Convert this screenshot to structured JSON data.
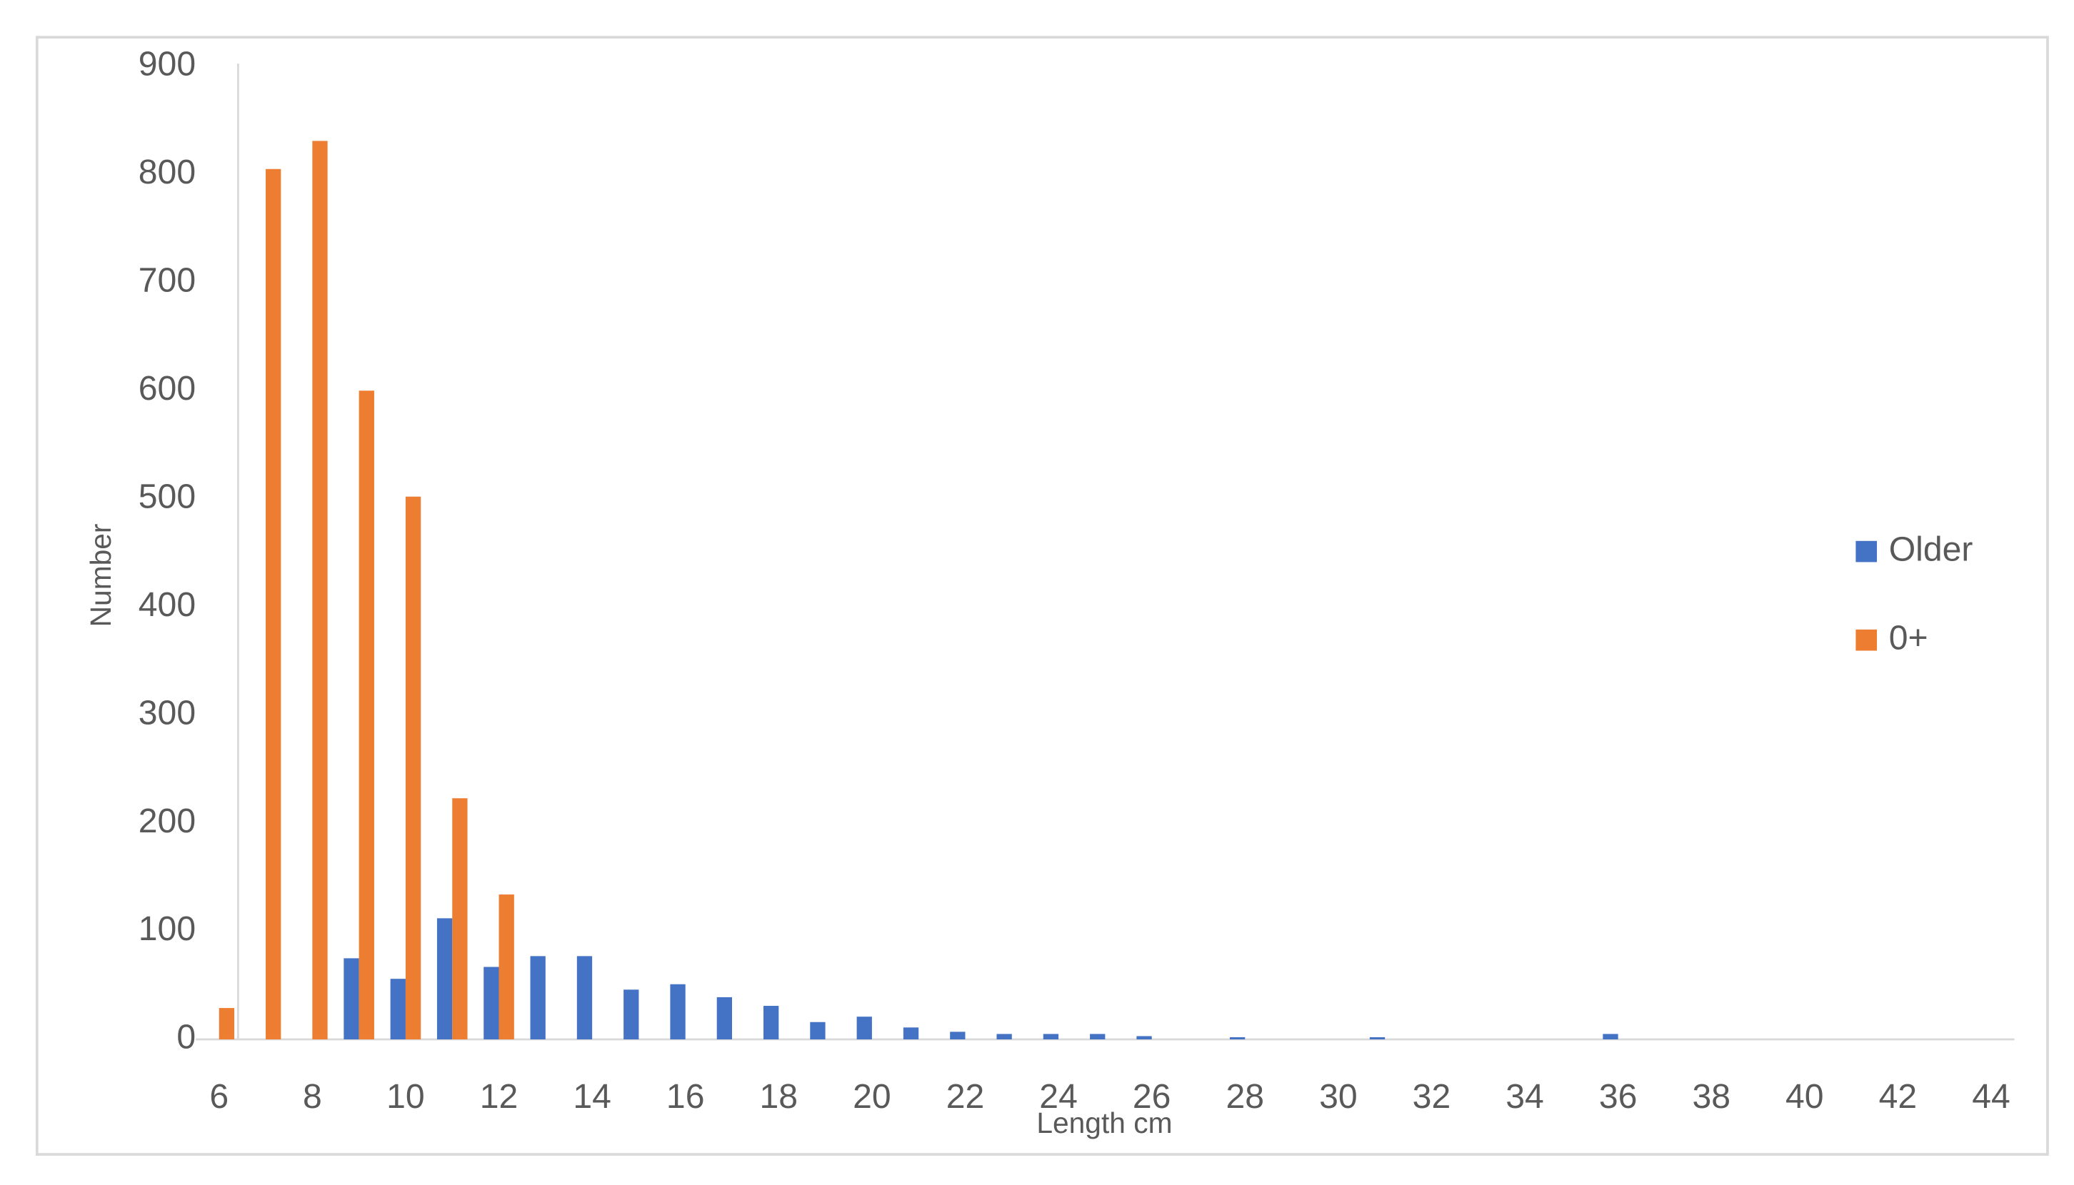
{
  "chart_data": {
    "type": "bar",
    "x_label": "Length cm",
    "y_label": "Number",
    "categories": [
      "6",
      null,
      "8",
      null,
      "10",
      null,
      "12",
      null,
      "14",
      null,
      "16",
      null,
      "18",
      null,
      "20",
      null,
      "22",
      null,
      "24",
      null,
      "26",
      null,
      "28",
      null,
      "30",
      null,
      "32",
      null,
      "34",
      null,
      "36",
      null,
      "38",
      null,
      "40",
      null,
      "42",
      null,
      "44"
    ],
    "series": [
      {
        "name": "Older",
        "color": "#4472c4",
        "values": [
          0,
          0,
          0,
          75,
          56,
          112,
          67,
          77,
          77,
          46,
          51,
          39,
          31,
          16,
          21,
          11,
          7,
          5,
          5,
          5,
          3,
          0,
          2,
          0,
          0,
          2,
          0,
          0,
          0,
          0,
          5,
          0,
          0,
          0,
          0,
          0,
          0,
          0,
          0
        ]
      },
      {
        "name": "0+",
        "color": "#ed7d31",
        "values": [
          29,
          805,
          831,
          600,
          502,
          223,
          134,
          0,
          0,
          0,
          0,
          0,
          0,
          0,
          0,
          0,
          0,
          0,
          0,
          0,
          0,
          0,
          0,
          0,
          0,
          0,
          0,
          0,
          0,
          0,
          0,
          0,
          0,
          0,
          0,
          0,
          0,
          0,
          0
        ]
      }
    ],
    "ylim": [
      0,
      900
    ],
    "yticks": [
      0,
      100,
      200,
      300,
      400,
      500,
      600,
      700,
      800,
      900
    ],
    "grid": false,
    "legend": "right"
  }
}
